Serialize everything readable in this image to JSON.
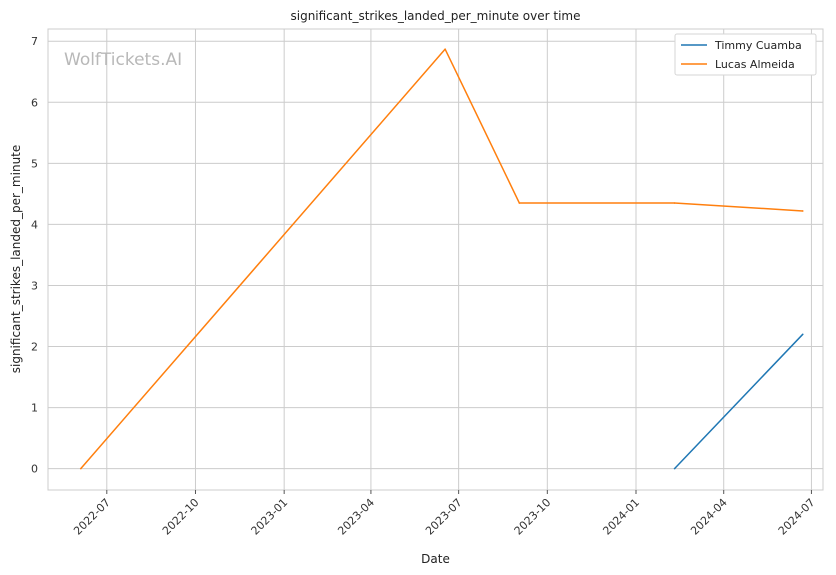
{
  "chart_data": {
    "type": "line",
    "title": "significant_strikes_landed_per_minute over time",
    "xlabel": "Date",
    "ylabel": "significant_strikes_landed_per_minute",
    "watermark": "WolfTickets.AI",
    "x_tick_labels": [
      "2022-07",
      "2022-10",
      "2023-01",
      "2023-04",
      "2023-07",
      "2023-10",
      "2024-01",
      "2024-04",
      "2024-07"
    ],
    "x_tick_dates": [
      "2022-07-01",
      "2022-10-01",
      "2023-01-01",
      "2023-04-01",
      "2023-07-01",
      "2023-10-01",
      "2024-01-01",
      "2024-04-01",
      "2024-07-01"
    ],
    "xlim": [
      "2022-05-01",
      "2024-07-13"
    ],
    "ylim": [
      -0.35,
      7.2
    ],
    "y_ticks": [
      0,
      1,
      2,
      3,
      4,
      5,
      6,
      7
    ],
    "grid": true,
    "legend_position": "top-right",
    "series": [
      {
        "name": "Timmy Cuamba",
        "color": "#1f77b4",
        "points": [
          {
            "x": "2024-02-10",
            "y": 0
          },
          {
            "x": "2024-06-22",
            "y": 2.2
          }
        ]
      },
      {
        "name": "Lucas Almeida",
        "color": "#ff7f0e",
        "points": [
          {
            "x": "2022-06-04",
            "y": 0
          },
          {
            "x": "2023-06-17",
            "y": 6.87
          },
          {
            "x": "2023-09-02",
            "y": 4.35
          },
          {
            "x": "2024-02-10",
            "y": 4.35
          },
          {
            "x": "2024-06-22",
            "y": 4.22
          }
        ]
      }
    ]
  }
}
